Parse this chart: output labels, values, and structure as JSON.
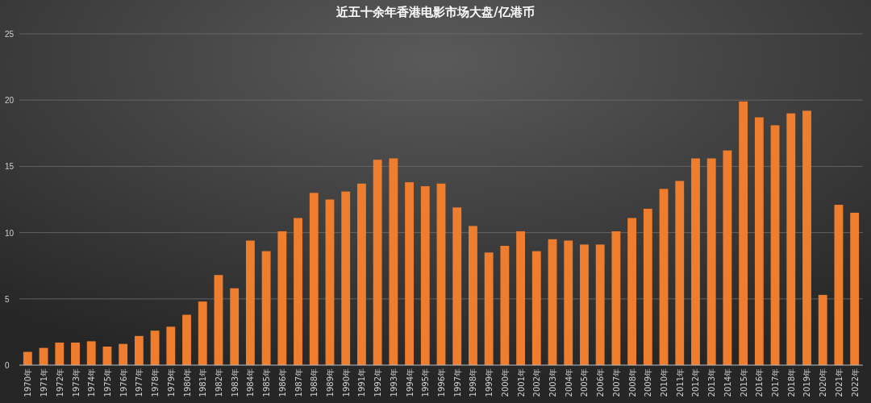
{
  "chart_data": {
    "type": "bar",
    "title": "近五十余年香港电影市场大盘/亿港币",
    "categories": [
      "1970年",
      "1971年",
      "1972年",
      "1973年",
      "1974年",
      "1975年",
      "1976年",
      "1977年",
      "1978年",
      "1979年",
      "1980年",
      "1981年",
      "1982年",
      "1983年",
      "1984年",
      "1985年",
      "1986年",
      "1987年",
      "1988年",
      "1989年",
      "1990年",
      "1991年",
      "1992年",
      "1993年",
      "1994年",
      "1995年",
      "1996年",
      "1997年",
      "1998年",
      "1999年",
      "2000年",
      "2001年",
      "2002年",
      "2003年",
      "2004年",
      "2005年",
      "2006年",
      "2007年",
      "2008年",
      "2009年",
      "2010年",
      "2011年",
      "2012年",
      "2013年",
      "2014年",
      "2015年",
      "2016年",
      "2017年",
      "2018年",
      "2019年",
      "2020年",
      "2021年",
      "2022年"
    ],
    "values": [
      1.0,
      1.3,
      1.7,
      1.7,
      1.8,
      1.4,
      1.6,
      2.2,
      2.6,
      2.9,
      3.8,
      4.8,
      6.8,
      5.8,
      9.4,
      8.6,
      10.1,
      11.1,
      13.0,
      12.5,
      13.1,
      13.7,
      15.5,
      15.6,
      13.8,
      13.5,
      13.7,
      11.9,
      10.5,
      8.5,
      9.0,
      10.1,
      8.6,
      9.5,
      9.4,
      9.1,
      9.1,
      10.1,
      11.1,
      11.8,
      13.3,
      13.9,
      15.6,
      15.6,
      16.2,
      19.9,
      18.7,
      18.1,
      19.0,
      19.2,
      5.3,
      12.1,
      11.5
    ],
    "color": "#ef7d2e",
    "ylim": [
      0,
      25
    ],
    "yticks": [
      0,
      5,
      10,
      15,
      20,
      25
    ],
    "grid": "y"
  }
}
